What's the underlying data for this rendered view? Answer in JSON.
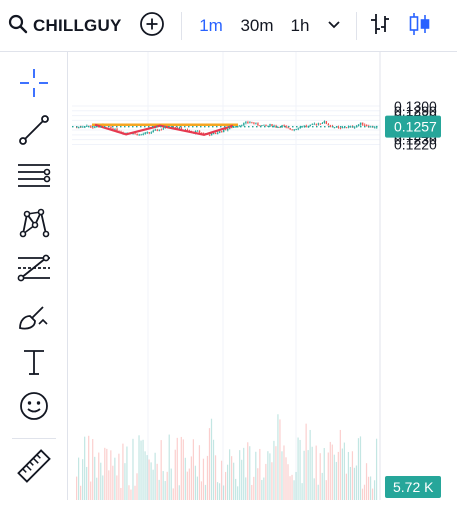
{
  "toolbar": {
    "symbol": "CHILLGUY",
    "timeframes": [
      "1m",
      "30m",
      "1h"
    ],
    "active_timeframe": "1m",
    "icons": [
      "search-icon",
      "add-circle-icon",
      "chevron-down-icon",
      "bar-chart-type-icon",
      "candles-chart-type-icon"
    ]
  },
  "left_toolbar": {
    "tools": [
      "crosshair-icon",
      "trend-line-icon",
      "horizontal-lines-icon",
      "pattern-icon",
      "fib-levels-icon",
      "brush-icon",
      "text-icon",
      "emoji-icon",
      "ruler-icon"
    ]
  },
  "price_axis": {
    "labels": [
      "0.1300",
      "0.1290",
      "0.1280",
      "0.1270",
      "0.1260",
      "0.1250",
      "0.1240",
      "0.1230",
      "0.1220"
    ],
    "current_price": "0.1257",
    "volume_label": "5.72 K"
  },
  "colors": {
    "accent": "#2962ff",
    "up": "#26a69a",
    "down": "#ef5350",
    "pattern_line": "#e53950",
    "resistance_line": "#f5a623"
  },
  "chart_data": {
    "type": "candlestick",
    "y_range": [
      0.1215,
      0.1302
    ],
    "price_series": [
      0.1256,
      0.1258,
      0.1259,
      0.1255,
      0.1257,
      0.1261,
      0.1257,
      0.1251,
      0.1248,
      0.1244,
      0.1246,
      0.1242,
      0.124,
      0.1243,
      0.1245,
      0.1249,
      0.1252,
      0.1256,
      0.1259,
      0.1255,
      0.1251,
      0.1248,
      0.1245,
      0.1247,
      0.1243,
      0.124,
      0.1242,
      0.1246,
      0.125,
      0.1254,
      0.1258,
      0.1261,
      0.1264,
      0.1267,
      0.1262,
      0.126,
      0.1258,
      0.1261,
      0.1256,
      0.1259,
      0.1253,
      0.1251,
      0.1255,
      0.1259,
      0.1257,
      0.1262,
      0.1264,
      0.1267,
      0.1259,
      0.1256,
      0.1253,
      0.1257,
      0.1256,
      0.1258,
      0.1264,
      0.126,
      0.1256,
      0.1257
    ],
    "current_price": 0.1257,
    "resistance_level": 0.1261,
    "w_pattern": [
      [
        0.1261,
        0.1241
      ],
      [
        0.1259,
        0.124
      ]
    ]
  }
}
